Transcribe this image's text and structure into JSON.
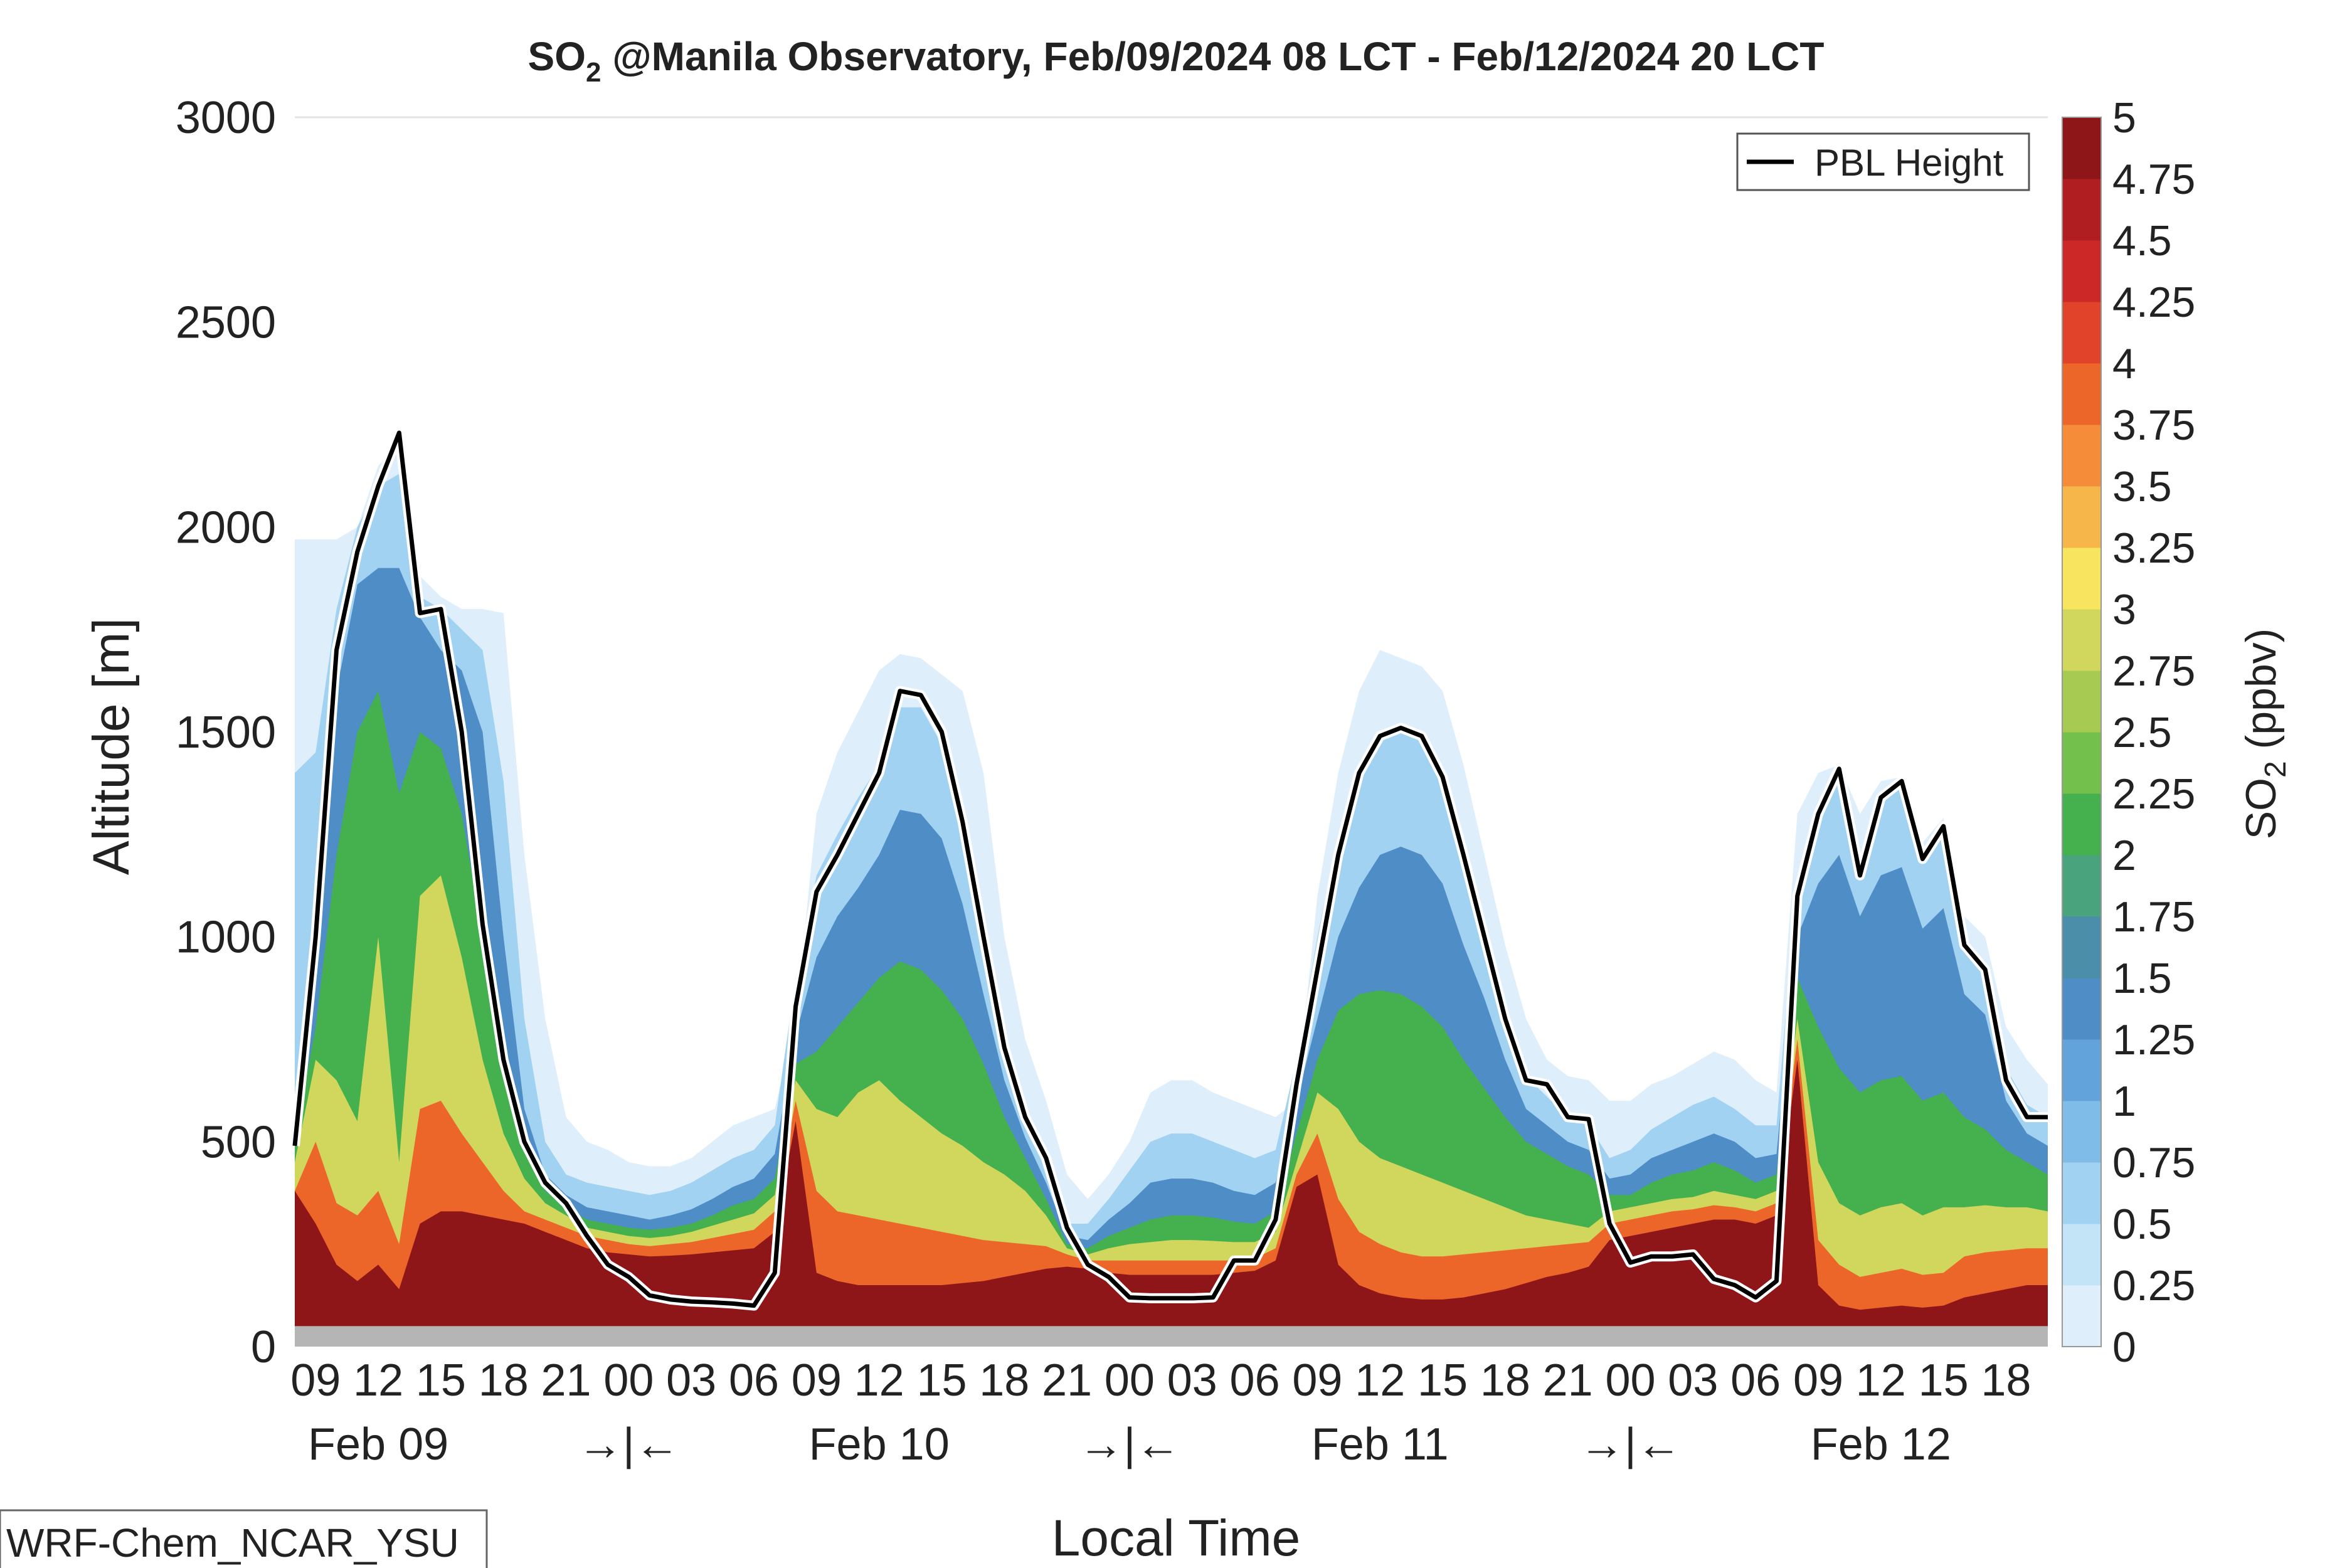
{
  "page": {
    "model_label": "WRF-Chem_NCAR_YSU"
  },
  "chart_data": {
    "type": "area",
    "title": {
      "species": "SO",
      "species_subscript": "2",
      "rest": " @Manila Observatory, Feb/09/2024 08 LCT - Feb/12/2024 20 LCT"
    },
    "xlabel": "Local Time",
    "ylabel": "Altitude [m]",
    "ylim": [
      0,
      3000
    ],
    "y_ticks": [
      0,
      500,
      1000,
      1500,
      2000,
      2500,
      3000
    ],
    "x_range_hours": [
      8,
      92
    ],
    "x_tick_labels": [
      {
        "h": 9,
        "label": "09"
      },
      {
        "h": 12,
        "label": "12"
      },
      {
        "h": 15,
        "label": "15"
      },
      {
        "h": 18,
        "label": "18"
      },
      {
        "h": 21,
        "label": "21"
      },
      {
        "h": 24,
        "label": "00"
      },
      {
        "h": 27,
        "label": "03"
      },
      {
        "h": 30,
        "label": "06"
      },
      {
        "h": 33,
        "label": "09"
      },
      {
        "h": 36,
        "label": "12"
      },
      {
        "h": 39,
        "label": "15"
      },
      {
        "h": 42,
        "label": "18"
      },
      {
        "h": 45,
        "label": "21"
      },
      {
        "h": 48,
        "label": "00"
      },
      {
        "h": 51,
        "label": "03"
      },
      {
        "h": 54,
        "label": "06"
      },
      {
        "h": 57,
        "label": "09"
      },
      {
        "h": 60,
        "label": "12"
      },
      {
        "h": 63,
        "label": "15"
      },
      {
        "h": 66,
        "label": "18"
      },
      {
        "h": 69,
        "label": "21"
      },
      {
        "h": 72,
        "label": "00"
      },
      {
        "h": 75,
        "label": "03"
      },
      {
        "h": 78,
        "label": "06"
      },
      {
        "h": 81,
        "label": "09"
      },
      {
        "h": 84,
        "label": "12"
      },
      {
        "h": 87,
        "label": "15"
      },
      {
        "h": 90,
        "label": "18"
      }
    ],
    "day_labels": [
      {
        "h": 12,
        "label": "Feb 09"
      },
      {
        "h": 24,
        "label": "→|←"
      },
      {
        "h": 36,
        "label": "Feb 10"
      },
      {
        "h": 48,
        "label": "→|←"
      },
      {
        "h": 60,
        "label": "Feb 11"
      },
      {
        "h": 72,
        "label": "→|←"
      },
      {
        "h": 84,
        "label": "Feb 12"
      }
    ],
    "legend": {
      "label": "PBL Height",
      "placement": "top-right"
    },
    "colorbar": {
      "label_main": "SO",
      "label_sub": "2",
      "label_rest": " (ppbv)",
      "levels": [
        0,
        0.25,
        0.5,
        0.75,
        1,
        1.25,
        1.5,
        1.75,
        2,
        2.25,
        2.5,
        2.75,
        3,
        3.25,
        3.5,
        3.75,
        4,
        4.25,
        4.5,
        4.75,
        5
      ],
      "tick_labels": [
        "0",
        "0.25",
        "0.5",
        "0.75",
        "1",
        "1.25",
        "1.5",
        "1.75",
        "2",
        "2.25",
        "2.5",
        "2.75",
        "3",
        "3.25",
        "3.5",
        "3.75",
        "4",
        "4.25",
        "4.5",
        "4.75",
        "5"
      ],
      "colors": [
        "#ffffff",
        "#deeffb",
        "#c3e3f7",
        "#a2d2f1",
        "#80bce8",
        "#63a3dc",
        "#4f8dc7",
        "#4a8eaa",
        "#49a37c",
        "#44b04e",
        "#74c04c",
        "#a7cb52",
        "#d1d75c",
        "#f9e45f",
        "#f7b64a",
        "#f48c3a",
        "#ec6529",
        "#e0432a",
        "#cc2827",
        "#b01e22",
        "#8e1518"
      ]
    },
    "ground_level_m": 50,
    "ground_color": "#b5b5b5",
    "pbl_height": {
      "name": "PBL Height",
      "x": [
        8,
        9,
        10,
        11,
        12,
        13,
        14,
        15,
        16,
        17,
        18,
        19,
        20,
        21,
        22,
        23,
        24,
        25,
        26,
        27,
        28,
        29,
        30,
        31,
        32,
        33,
        34,
        35,
        36,
        37,
        38,
        39,
        40,
        41,
        42,
        43,
        44,
        45,
        46,
        47,
        48,
        49,
        50,
        51,
        52,
        53,
        54,
        55,
        56,
        57,
        58,
        59,
        60,
        61,
        62,
        63,
        64,
        65,
        66,
        67,
        68,
        69,
        70,
        71,
        72,
        73,
        74,
        75,
        76,
        77,
        78,
        79,
        80,
        81,
        82,
        83,
        84,
        85,
        86,
        87,
        88,
        89,
        90,
        91,
        92
      ],
      "y": [
        490,
        1000,
        1700,
        1940,
        2100,
        2230,
        1790,
        1800,
        1500,
        1030,
        700,
        500,
        400,
        350,
        270,
        200,
        170,
        125,
        115,
        110,
        108,
        105,
        100,
        180,
        830,
        1110,
        1200,
        1300,
        1400,
        1600,
        1590,
        1500,
        1280,
        1000,
        730,
        560,
        460,
        290,
        200,
        170,
        120,
        118,
        118,
        118,
        120,
        210,
        210,
        310,
        640,
        920,
        1200,
        1400,
        1490,
        1510,
        1490,
        1390,
        1200,
        1000,
        800,
        650,
        640,
        560,
        555,
        300,
        205,
        220,
        220,
        225,
        165,
        150,
        120,
        160,
        1100,
        1300,
        1410,
        1150,
        1340,
        1380,
        1190,
        1270,
        980,
        920,
        650,
        560,
        560
      ]
    },
    "so2_layers": [
      {
        "level": 0.25,
        "top": [
          1970,
          1970,
          1970,
          2000,
          2150,
          2200,
          1880,
          1830,
          1800,
          1800,
          1790,
          1200,
          800,
          560,
          500,
          480,
          450,
          440,
          440,
          460,
          500,
          540,
          560,
          580,
          800,
          1300,
          1450,
          1550,
          1650,
          1690,
          1680,
          1640,
          1600,
          1400,
          1000,
          750,
          600,
          420,
          360,
          420,
          500,
          620,
          650,
          650,
          620,
          600,
          580,
          560,
          600,
          1100,
          1400,
          1600,
          1700,
          1680,
          1660,
          1600,
          1420,
          1200,
          980,
          800,
          700,
          660,
          650,
          600,
          600,
          640,
          660,
          690,
          720,
          700,
          650,
          620,
          1300,
          1400,
          1420,
          1300,
          1380,
          1390,
          1230,
          1290,
          1050,
          1000,
          780,
          700,
          640
        ]
      },
      {
        "level": 0.75,
        "top": [
          1400,
          1450,
          1800,
          2000,
          2100,
          2130,
          1830,
          1800,
          1750,
          1700,
          1380,
          800,
          500,
          420,
          400,
          390,
          380,
          370,
          380,
          400,
          430,
          460,
          480,
          540,
          900,
          1150,
          1250,
          1340,
          1420,
          1560,
          1560,
          1470,
          1270,
          990,
          720,
          560,
          450,
          300,
          300,
          360,
          430,
          500,
          520,
          520,
          500,
          480,
          460,
          480,
          700,
          1000,
          1250,
          1420,
          1500,
          1520,
          1500,
          1400,
          1220,
          1020,
          820,
          660,
          610,
          560,
          540,
          460,
          480,
          530,
          560,
          590,
          610,
          580,
          540,
          540,
          1150,
          1290,
          1400,
          1200,
          1340,
          1370,
          1200,
          1260,
          980,
          920,
          680,
          590,
          560
        ]
      },
      {
        "level": 1.5,
        "top": [
          600,
          900,
          1600,
          1860,
          1900,
          1900,
          1780,
          1700,
          1650,
          1500,
          1000,
          580,
          420,
          370,
          340,
          330,
          320,
          310,
          320,
          335,
          360,
          390,
          410,
          470,
          760,
          950,
          1050,
          1120,
          1200,
          1310,
          1300,
          1240,
          1080,
          860,
          650,
          510,
          400,
          270,
          260,
          310,
          350,
          400,
          410,
          410,
          400,
          380,
          370,
          400,
          600,
          800,
          1000,
          1120,
          1200,
          1220,
          1200,
          1130,
          980,
          850,
          700,
          580,
          540,
          500,
          480,
          410,
          420,
          460,
          480,
          500,
          520,
          500,
          460,
          470,
          1000,
          1130,
          1200,
          1050,
          1150,
          1170,
          1020,
          1070,
          860,
          810,
          600,
          520,
          490
        ]
      },
      {
        "level": 2.25,
        "top": [
          500,
          780,
          1200,
          1500,
          1600,
          1350,
          1500,
          1460,
          1300,
          1000,
          750,
          490,
          380,
          340,
          310,
          300,
          290,
          285,
          290,
          300,
          320,
          345,
          360,
          410,
          690,
          720,
          780,
          840,
          900,
          940,
          920,
          870,
          800,
          690,
          560,
          460,
          360,
          250,
          240,
          270,
          290,
          310,
          320,
          320,
          315,
          305,
          300,
          330,
          520,
          700,
          820,
          860,
          870,
          860,
          830,
          780,
          700,
          630,
          560,
          500,
          470,
          440,
          420,
          370,
          370,
          400,
          420,
          430,
          450,
          430,
          400,
          420,
          900,
          780,
          680,
          620,
          650,
          660,
          600,
          620,
          560,
          530,
          480,
          450,
          420
        ]
      },
      {
        "level": 3,
        "top": [
          450,
          700,
          650,
          550,
          1000,
          450,
          1100,
          1150,
          950,
          700,
          520,
          410,
          350,
          320,
          290,
          280,
          270,
          265,
          270,
          280,
          295,
          310,
          325,
          370,
          650,
          580,
          560,
          620,
          650,
          600,
          560,
          520,
          490,
          450,
          420,
          380,
          320,
          240,
          225,
          240,
          250,
          255,
          260,
          260,
          258,
          255,
          255,
          280,
          450,
          620,
          580,
          500,
          460,
          440,
          420,
          400,
          380,
          360,
          340,
          320,
          310,
          300,
          290,
          330,
          340,
          350,
          360,
          365,
          380,
          370,
          360,
          380,
          800,
          450,
          350,
          320,
          340,
          350,
          320,
          340,
          340,
          345,
          340,
          340,
          330
        ]
      },
      {
        "level": 4,
        "top": [
          380,
          500,
          350,
          320,
          380,
          250,
          580,
          600,
          520,
          450,
          380,
          330,
          310,
          290,
          270,
          260,
          250,
          245,
          250,
          255,
          265,
          275,
          285,
          330,
          600,
          380,
          330,
          320,
          310,
          300,
          290,
          280,
          270,
          260,
          255,
          250,
          245,
          225,
          210,
          210,
          210,
          210,
          210,
          210,
          210,
          210,
          215,
          240,
          420,
          520,
          360,
          280,
          250,
          230,
          220,
          220,
          225,
          230,
          235,
          240,
          245,
          250,
          255,
          300,
          310,
          320,
          330,
          335,
          345,
          340,
          330,
          350,
          750,
          260,
          200,
          170,
          180,
          190,
          175,
          180,
          220,
          230,
          235,
          240,
          240
        ]
      },
      {
        "level": 5,
        "top": [
          380,
          300,
          200,
          160,
          200,
          140,
          300,
          330,
          330,
          320,
          310,
          300,
          280,
          260,
          240,
          230,
          225,
          220,
          222,
          225,
          230,
          235,
          240,
          280,
          550,
          180,
          160,
          150,
          150,
          150,
          150,
          150,
          155,
          160,
          170,
          180,
          190,
          195,
          190,
          180,
          175,
          175,
          175,
          175,
          175,
          180,
          185,
          210,
          390,
          420,
          200,
          150,
          130,
          120,
          115,
          115,
          120,
          130,
          140,
          155,
          170,
          180,
          195,
          260,
          270,
          280,
          290,
          300,
          310,
          310,
          300,
          320,
          700,
          150,
          100,
          90,
          95,
          100,
          95,
          100,
          120,
          130,
          140,
          150,
          150
        ]
      }
    ]
  }
}
